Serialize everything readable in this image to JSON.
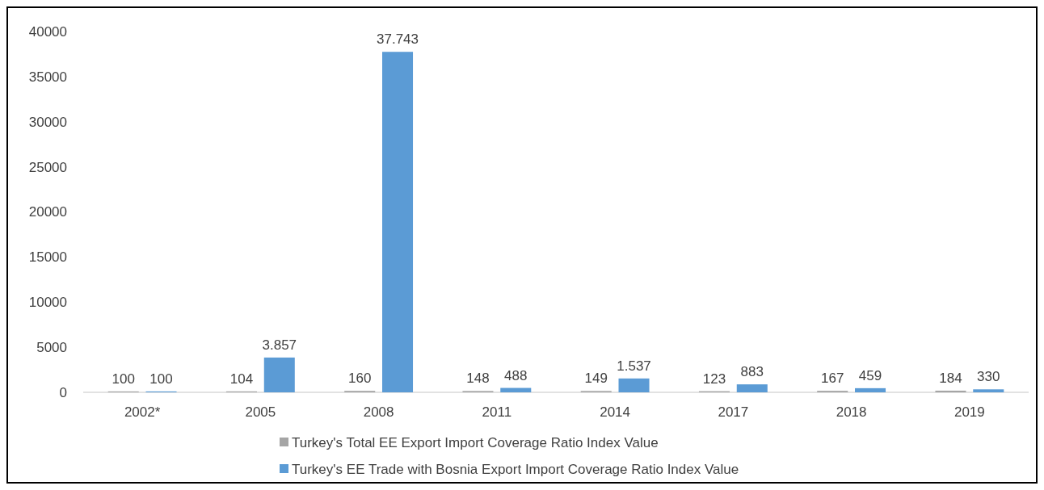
{
  "chart_data": {
    "type": "bar",
    "categories": [
      "2002*",
      "2005",
      "2008",
      "2011",
      "2014",
      "2017",
      "2018",
      "2019"
    ],
    "series": [
      {
        "name": "Turkey's Total EE Export Import Coverage Ratio Index Value",
        "color": "#a5a5a5",
        "values": [
          100,
          104,
          160,
          148,
          149,
          123,
          167,
          184
        ],
        "value_labels": [
          "100",
          "104",
          "160",
          "148",
          "149",
          "123",
          "167",
          "184"
        ]
      },
      {
        "name": "Turkey's EE Trade with Bosnia Export Import Coverage Ratio Index Value",
        "color": "#5b9bd5",
        "values": [
          100,
          3857,
          37743,
          488,
          1537,
          883,
          459,
          330
        ],
        "value_labels": [
          "100",
          "3.857",
          "37.743",
          "488",
          "1.537",
          "883",
          "459",
          "330"
        ]
      }
    ],
    "ylim": [
      0,
      40000
    ],
    "yticks": [
      0,
      5000,
      10000,
      15000,
      20000,
      25000,
      30000,
      35000,
      40000
    ],
    "grid": false,
    "legend": "bottom"
  }
}
